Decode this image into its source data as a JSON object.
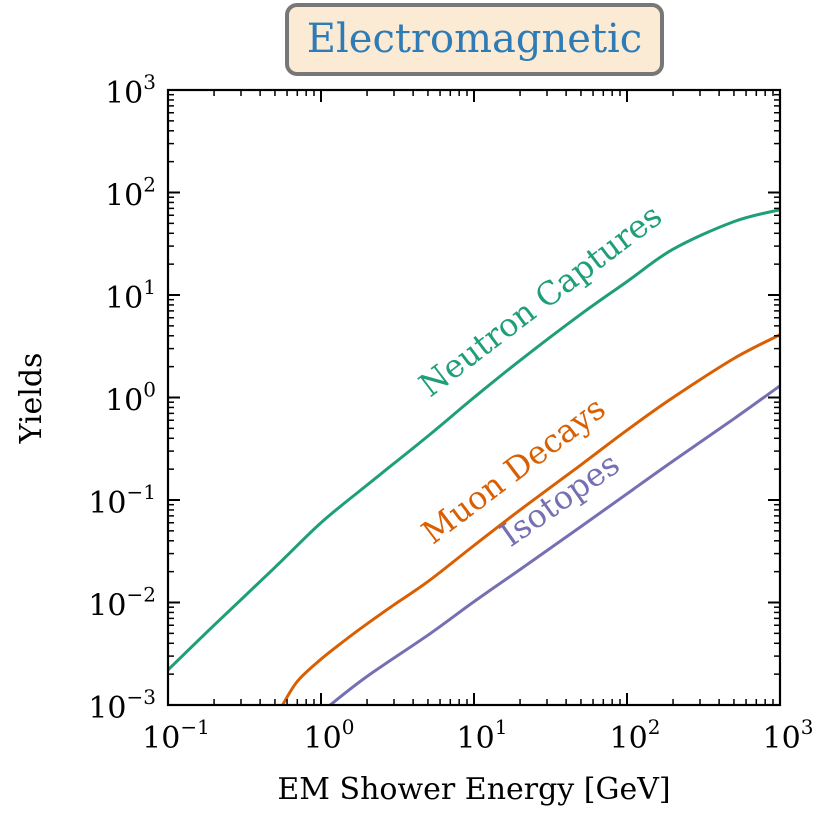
{
  "chart_data": {
    "type": "line",
    "title": "Electromagnetic",
    "xlabel": "EM Shower Energy [GeV]",
    "ylabel": "Yields",
    "xscale": "log",
    "yscale": "log",
    "xlim": [
      0.1,
      1000
    ],
    "ylim": [
      0.001,
      1000
    ],
    "x_ticks": [
      {
        "value": 0.1,
        "base": "10",
        "exp": "−1"
      },
      {
        "value": 1,
        "base": "10",
        "exp": "0"
      },
      {
        "value": 10,
        "base": "10",
        "exp": "1"
      },
      {
        "value": 100,
        "base": "10",
        "exp": "2"
      },
      {
        "value": 1000,
        "base": "10",
        "exp": "3"
      }
    ],
    "y_ticks": [
      {
        "value": 0.001,
        "base": "10",
        "exp": "−3"
      },
      {
        "value": 0.01,
        "base": "10",
        "exp": "−2"
      },
      {
        "value": 0.1,
        "base": "10",
        "exp": "−1"
      },
      {
        "value": 1,
        "base": "10",
        "exp": "0"
      },
      {
        "value": 10,
        "base": "10",
        "exp": "1"
      },
      {
        "value": 100,
        "base": "10",
        "exp": "2"
      },
      {
        "value": 1000,
        "base": "10",
        "exp": "3"
      }
    ],
    "grid": false,
    "legend": "inline labels along curves",
    "colors": {
      "title_text": "#2e7bb5",
      "title_box_fill": "#fbebd5",
      "title_box_edge": "#777777",
      "axis": "#000000"
    },
    "series": [
      {
        "name": "Neutron Captures",
        "color": "#1f9e7a",
        "label_at_x": 30,
        "label_offset_y": 2.0,
        "x": [
          0.1,
          0.2,
          0.5,
          1,
          2,
          5,
          10,
          20,
          50,
          100,
          200,
          500,
          1000
        ],
        "y": [
          0.0022,
          0.006,
          0.022,
          0.06,
          0.14,
          0.42,
          1.0,
          2.3,
          6.5,
          13.5,
          28,
          52,
          68
        ]
      },
      {
        "name": "Muon Decays",
        "color": "#d95f02",
        "label_at_x": 20,
        "label_offset_y": 2.0,
        "x": [
          0.55,
          0.7,
          1,
          1.5,
          2,
          3,
          5,
          10,
          20,
          50,
          100,
          200,
          500,
          1000
        ],
        "y": [
          0.00095,
          0.0017,
          0.0028,
          0.0045,
          0.0062,
          0.0095,
          0.016,
          0.036,
          0.08,
          0.22,
          0.48,
          1.0,
          2.4,
          4.1
        ]
      },
      {
        "name": "Isotopes",
        "color": "#7570b3",
        "label_at_x": 40,
        "label_offset_y": 1.9,
        "x": [
          1.1,
          2,
          5,
          10,
          20,
          50,
          100,
          200,
          500,
          1000
        ],
        "y": [
          0.00095,
          0.0019,
          0.0048,
          0.0102,
          0.021,
          0.055,
          0.115,
          0.24,
          0.62,
          1.3
        ]
      }
    ]
  }
}
